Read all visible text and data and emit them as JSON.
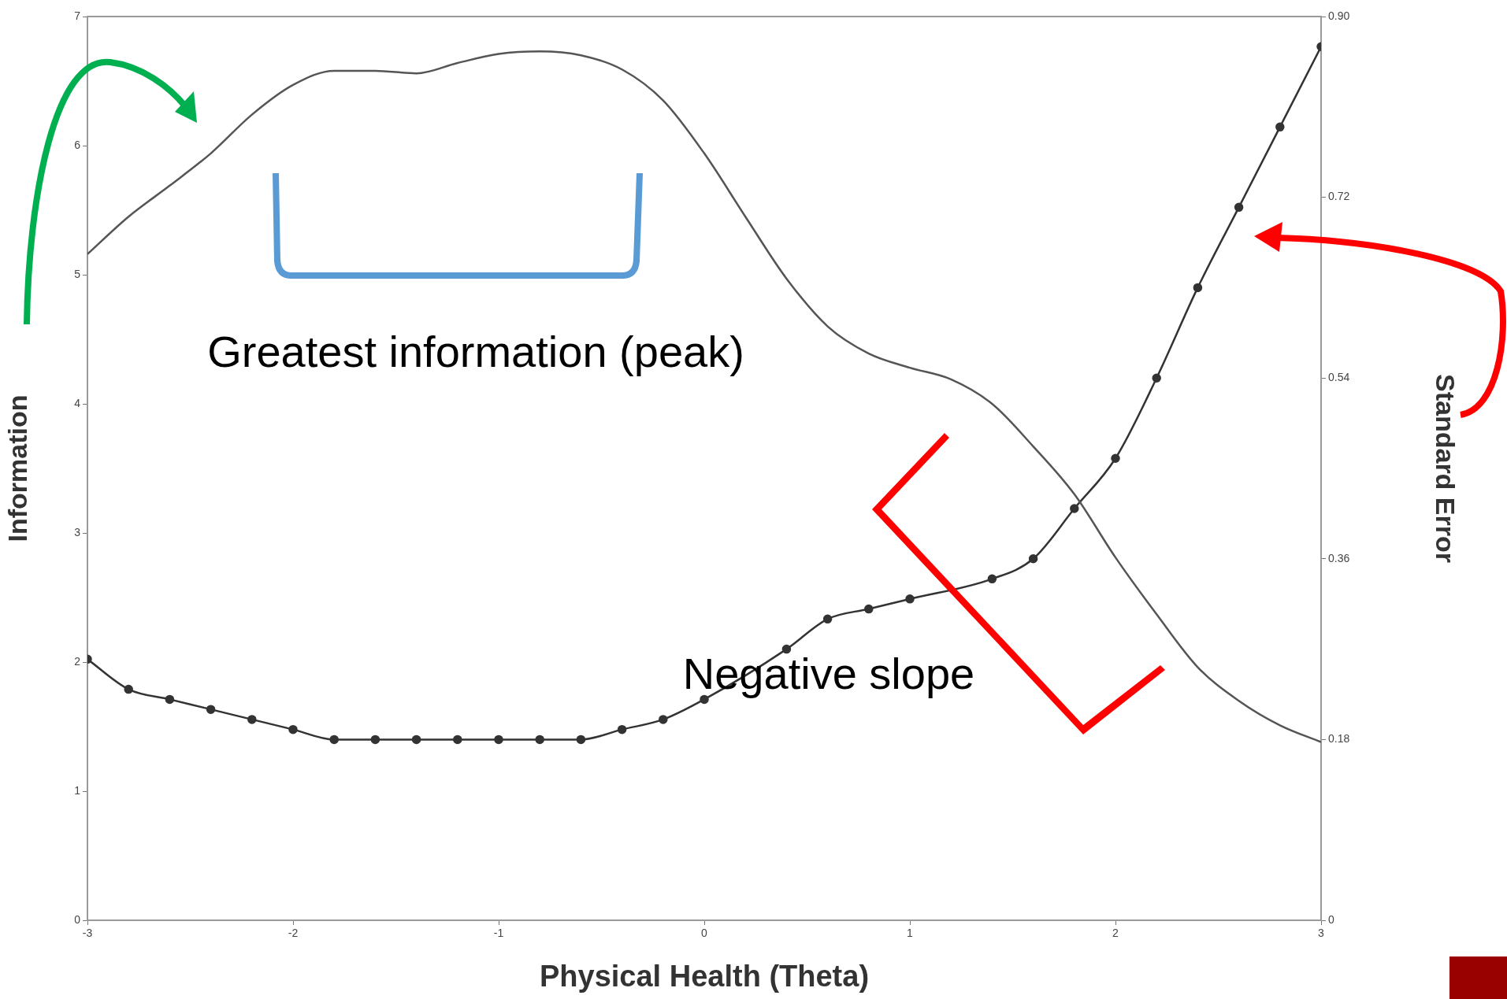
{
  "chart_data": {
    "type": "line",
    "xlabel": "Physical Health (Theta)",
    "ylabel": "Information",
    "y2label": "Standard Error",
    "x": [
      -3,
      -2.8,
      -2.6,
      -2.4,
      -2.2,
      -2,
      -1.8,
      -1.6,
      -1.4,
      -1.2,
      -1,
      -0.8,
      -0.6,
      -0.4,
      -0.2,
      0,
      0.2,
      0.4,
      0.6,
      0.8,
      1,
      1.2,
      1.4,
      1.6,
      1.8,
      2,
      2.2,
      2.4,
      2.6,
      2.8,
      3
    ],
    "series": [
      {
        "color": "#555555",
        "marker": "none",
        "values": [
          5.16,
          5.45,
          5.69,
          5.94,
          6.24,
          6.47,
          6.58,
          6.58,
          6.56,
          6.64,
          6.71,
          6.73,
          6.7,
          6.59,
          6.35,
          5.94,
          5.45,
          4.97,
          4.6,
          4.39,
          4.28,
          4.19,
          4,
          3.67,
          3.3,
          2.81,
          2.37,
          1.96,
          1.7,
          1.51,
          1.38
        ]
      },
      {
        "color": "#333333",
        "marker": "circle",
        "axis": "y2",
        "values": [
          0.26,
          0.23,
          0.22,
          0.21,
          0.2,
          0.19,
          0.18,
          0.18,
          0.18,
          0.18,
          0.18,
          0.18,
          0.18,
          0.19,
          0.2,
          0.22,
          null,
          0.27,
          0.3,
          0.31,
          0.32,
          null,
          0.34,
          0.36,
          0.41,
          0.46,
          0.54,
          0.63,
          0.71,
          0.79,
          0.87
        ]
      }
    ],
    "xlim": [
      -3,
      3
    ],
    "xticks": [
      -3,
      -2,
      -1,
      0,
      1,
      2,
      3
    ],
    "ylim": [
      0,
      7
    ],
    "yticks": [
      0,
      1,
      2,
      3,
      4,
      5,
      6,
      7
    ],
    "y2lim": [
      0,
      0.9
    ],
    "y2ticks": [
      0,
      {
        "value": 0.18,
        "label": "0.18"
      },
      {
        "value": 0.36,
        "label": "0.36"
      },
      {
        "value": 0.54,
        "label": "0.54"
      },
      {
        "value": 0.72,
        "label": "0.72"
      },
      {
        "value": 0.9,
        "label": "0.90"
      }
    ],
    "grid": false,
    "legend": false,
    "annotations": [
      "Greatest information (peak)",
      "Negative slope"
    ]
  }
}
